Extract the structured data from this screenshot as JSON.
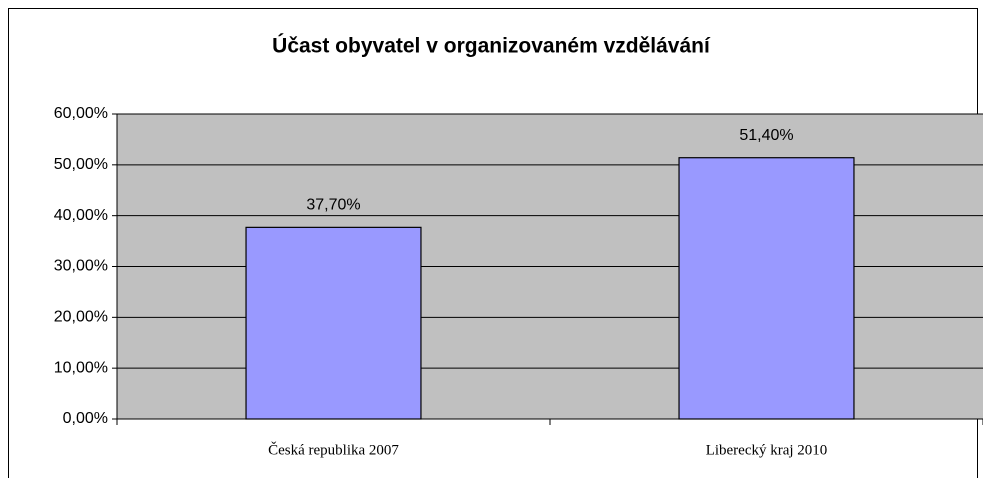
{
  "chart_data": {
    "type": "bar",
    "title": "Účast obyvatel v organizovaném vzdělávání",
    "categories": [
      "Česká republika 2007",
      "Liberecký kraj 2010"
    ],
    "values": [
      37.7,
      51.4
    ],
    "value_labels": [
      "37,70%",
      "51,40%"
    ],
    "color": "#9999ff",
    "ylim": [
      0,
      60
    ],
    "yticks": [
      {
        "value": 0,
        "label": "0,00%"
      },
      {
        "value": 10,
        "label": "10,00%"
      },
      {
        "value": 20,
        "label": "20,00%"
      },
      {
        "value": 30,
        "label": "30,00%"
      },
      {
        "value": 40,
        "label": "40,00%"
      },
      {
        "value": 50,
        "label": "50,00%"
      },
      {
        "value": 60,
        "label": "60,00%"
      }
    ],
    "grid": true
  }
}
